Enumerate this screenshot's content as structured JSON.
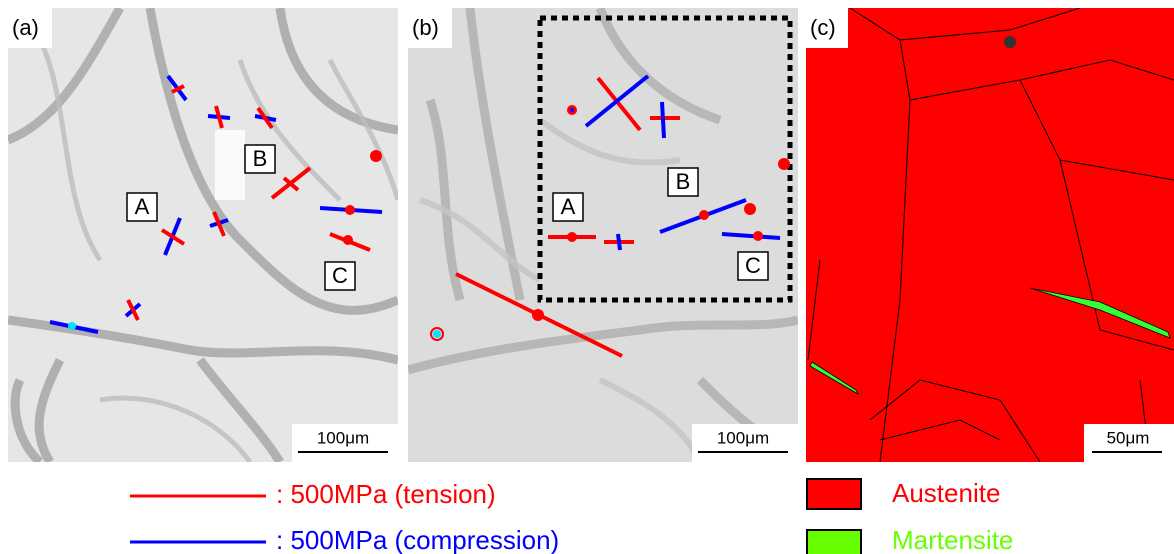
{
  "panels": [
    {
      "label": "(a)",
      "markers": [
        "A",
        "B",
        "C"
      ],
      "scale_bar": "100μm"
    },
    {
      "label": "(b)",
      "markers": [
        "A",
        "B",
        "C"
      ],
      "scale_bar": "100μm"
    },
    {
      "label": "(c)",
      "scale_bar": "50μm"
    }
  ],
  "legend": {
    "stress": [
      ": 500MPa (tension)",
      ": 500MPa (compression)"
    ],
    "phases": [
      "Austenite",
      "Martensite"
    ]
  }
}
